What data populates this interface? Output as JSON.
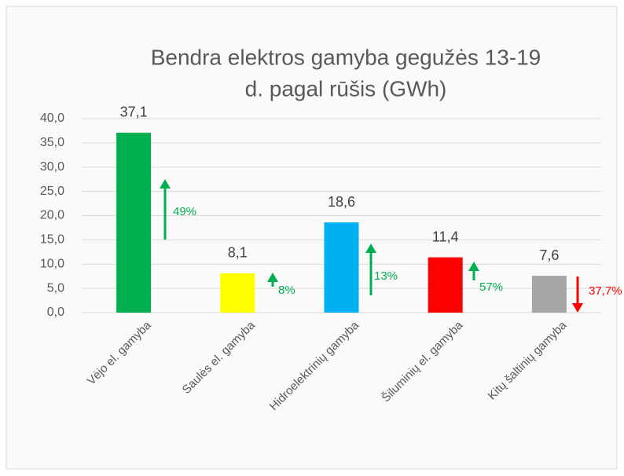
{
  "chart_data": {
    "type": "bar",
    "title": [
      "Bendra elektros gamyba gegužės 13-19",
      "d. pagal rūšis (GWh)"
    ],
    "categories": [
      "Vėjo el. gamyba",
      "Saulės el. gamyba",
      "Hidroelektrinių gamyba",
      "Šiluminių el. gamyba",
      "Kitų  šaltinių gamyba"
    ],
    "values": [
      37.1,
      8.1,
      18.6,
      11.4,
      7.6
    ],
    "value_labels": [
      "37,1",
      "8,1",
      "18,6",
      "11,4",
      "7,6"
    ],
    "colors": [
      "#00b050",
      "#ffff00",
      "#00b0f0",
      "#ff0000",
      "#a6a6a6"
    ],
    "ylim": [
      0,
      40
    ],
    "yticks": [
      {
        "value": 0,
        "label": "0,0"
      },
      {
        "value": 5,
        "label": "5,0"
      },
      {
        "value": 10,
        "label": "10,0"
      },
      {
        "value": 15,
        "label": "15,0"
      },
      {
        "value": 20,
        "label": "20,0"
      },
      {
        "value": 25,
        "label": "25,0"
      },
      {
        "value": 30,
        "label": "30,0"
      },
      {
        "value": 35,
        "label": "35,0"
      },
      {
        "value": 40,
        "label": "40,0"
      }
    ],
    "grid": true,
    "annotations": [
      {
        "text": "49%",
        "direction": "up",
        "color": "#00b050"
      },
      {
        "text": "8%",
        "direction": "up",
        "color": "#00b050"
      },
      {
        "text": "13%",
        "direction": "up",
        "color": "#00b050"
      },
      {
        "text": "57%",
        "direction": "up",
        "color": "#00b050"
      },
      {
        "text": "37,7%",
        "direction": "down",
        "color": "#ff0000"
      }
    ]
  }
}
